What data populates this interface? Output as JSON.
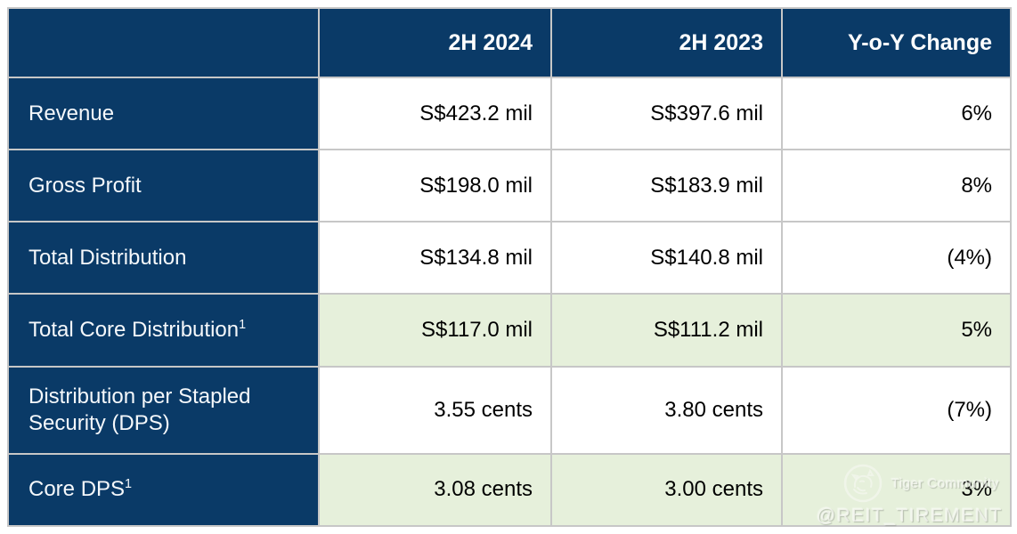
{
  "chart_data": {
    "type": "table",
    "columns": [
      "",
      "2H 2024",
      "2H 2023",
      "Y-o-Y Change"
    ],
    "rows": [
      [
        "Revenue",
        "S$423.2 mil",
        "S$397.6 mil",
        "6%"
      ],
      [
        "Gross Profit",
        "S$198.0 mil",
        "S$183.9 mil",
        "8%"
      ],
      [
        "Total Distribution",
        "S$134.8 mil",
        "S$140.8 mil",
        "(4%)"
      ],
      [
        "Total Core Distribution¹",
        "S$117.0 mil",
        "S$111.2 mil",
        "5%"
      ],
      [
        "Distribution per Stapled Security (DPS)",
        "3.55 cents",
        "3.80 cents",
        "(7%)"
      ],
      [
        "Core DPS¹",
        "3.08 cents",
        "3.00 cents",
        "3%"
      ]
    ],
    "highlighted_rows": [
      3,
      5
    ],
    "title": "",
    "legend_position": "none"
  },
  "table": {
    "headers": [
      "",
      "2H 2024",
      "2H 2023",
      "Y-o-Y Change"
    ],
    "rows": [
      {
        "label": "Revenue",
        "sup": "",
        "h2_2024": "S$423.2 mil",
        "h2_2023": "S$397.6 mil",
        "yoy_change": "6%",
        "highlight": false
      },
      {
        "label": "Gross Profit",
        "sup": "",
        "h2_2024": "S$198.0 mil",
        "h2_2023": "S$183.9 mil",
        "yoy_change": "8%",
        "highlight": false
      },
      {
        "label": "Total Distribution",
        "sup": "",
        "h2_2024": "S$134.8 mil",
        "h2_2023": "S$140.8 mil",
        "yoy_change": "(4%)",
        "highlight": false
      },
      {
        "label": "Total Core Distribution",
        "sup": "1",
        "h2_2024": "S$117.0 mil",
        "h2_2023": "S$111.2 mil",
        "yoy_change": "5%",
        "highlight": true
      },
      {
        "label": "Distribution per Stapled Security (DPS)",
        "sup": "",
        "h2_2024": "3.55 cents",
        "h2_2023": "3.80 cents",
        "yoy_change": "(7%)",
        "highlight": false
      },
      {
        "label": "Core DPS",
        "sup": "1",
        "h2_2024": "3.08 cents",
        "h2_2023": "3.00 cents",
        "yoy_change": "3%",
        "highlight": true
      }
    ]
  },
  "watermark": {
    "brand": "Tiger Community",
    "handle": "@REIT_TIREMENT",
    "logo_icon": "tiger-logo-icon"
  },
  "colors": {
    "header_navy": "#0A3A67",
    "highlight_green": "#E6F0DB",
    "border_gray": "#C7C7C7",
    "value_text": "#000000",
    "header_text": "#FFFFFF"
  }
}
